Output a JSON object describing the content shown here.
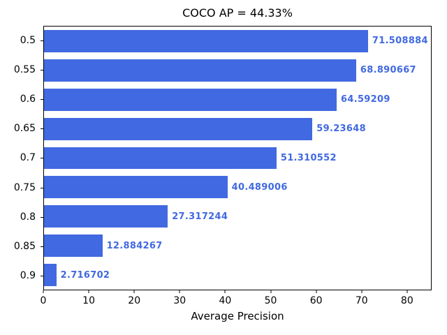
{
  "chart_data": {
    "type": "bar",
    "orientation": "horizontal",
    "title": "COCO AP = 44.33%",
    "xlabel": "Average Precision",
    "categories": [
      "0.5",
      "0.55",
      "0.6",
      "0.65",
      "0.7",
      "0.75",
      "0.8",
      "0.85",
      "0.9"
    ],
    "values": [
      71.508884,
      68.890667,
      64.59209,
      59.23648,
      51.310552,
      40.489006,
      27.317244,
      12.884267,
      2.716702
    ],
    "value_labels": [
      "71.508884",
      "68.890667",
      "64.59209",
      "59.23648",
      "51.310552",
      "40.489006",
      "27.317244",
      "12.884267",
      "2.716702"
    ],
    "xlim": [
      0,
      85.4
    ],
    "xticks": [
      0,
      10,
      20,
      30,
      40,
      50,
      60,
      70,
      80
    ],
    "xtick_labels": [
      "0",
      "10",
      "20",
      "30",
      "40",
      "50",
      "60",
      "70",
      "80"
    ],
    "grid": false,
    "bar_color": "#4169e1",
    "value_label_color": "#4169e1",
    "axis_color": "#000000"
  }
}
